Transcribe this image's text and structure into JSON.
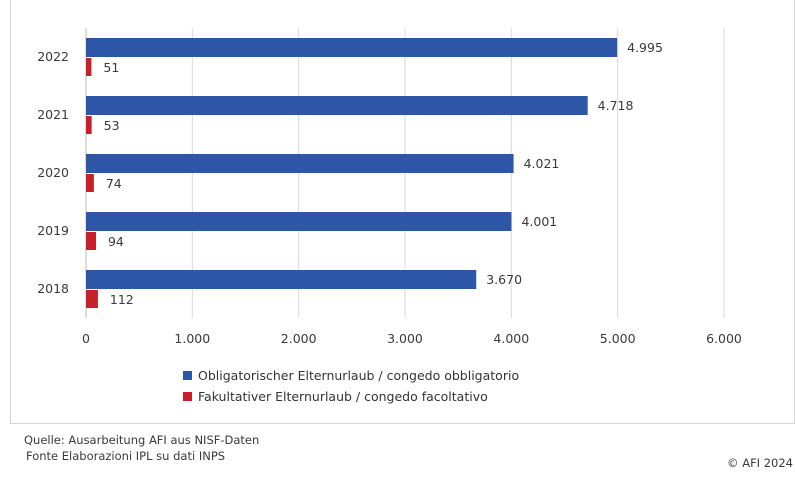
{
  "chart_data": {
    "type": "bar",
    "orientation": "horizontal",
    "categories": [
      "2022",
      "2021",
      "2020",
      "2019",
      "2018"
    ],
    "series": [
      {
        "name": "Obligatorischer Elternurlaub / congedo obbligatorio",
        "color": "#2e56a7",
        "values": [
          4995,
          4718,
          4021,
          4001,
          3670
        ],
        "labels": [
          "4.995",
          "4.718",
          "4.021",
          "4.001",
          "3.670"
        ]
      },
      {
        "name": "Fakultativer Elternurlaub / congedo facoltativo",
        "color": "#c8202a",
        "values": [
          51,
          53,
          74,
          94,
          112
        ],
        "labels": [
          "51",
          "53",
          "74",
          "94",
          "112"
        ]
      }
    ],
    "xlim": [
      0,
      6000
    ],
    "xticks": [
      0,
      1000,
      2000,
      3000,
      4000,
      5000,
      6000
    ],
    "xtick_labels": [
      "0",
      "1.000",
      "2.000",
      "3.000",
      "4.000",
      "5.000",
      "6.000"
    ],
    "grid": "vertical",
    "legend_position": "bottom"
  },
  "source": {
    "line1": "Quelle: Ausarbeitung AFI aus NISF-Daten",
    "line2": "Fonte Elaborazioni IPL su dati INPS"
  },
  "copyright": "© AFI 2024"
}
